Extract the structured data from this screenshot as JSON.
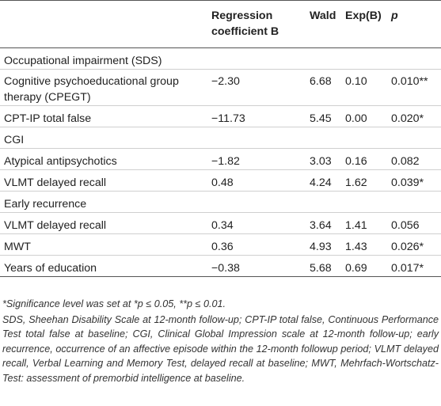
{
  "headers": {
    "col1": "",
    "col2": "Regression coefficient B",
    "col3": "Wald",
    "col4": "Exp(B)",
    "col5": "p"
  },
  "rows": [
    {
      "type": "section",
      "label": "Occupational impairment (SDS)"
    },
    {
      "type": "data",
      "label": "Cognitive psychoeducational group therapy (CPEGT)",
      "b": "−2.30",
      "wald": "6.68",
      "expb": "0.10",
      "p": "0.010**"
    },
    {
      "type": "data",
      "label": "CPT-IP total false",
      "b": "−11.73",
      "wald": "5.45",
      "expb": "0.00",
      "p": "0.020*"
    },
    {
      "type": "section",
      "label": "CGI"
    },
    {
      "type": "data",
      "label": "Atypical antipsychotics",
      "b": "−1.82",
      "wald": "3.03",
      "expb": "0.16",
      "p": "0.082"
    },
    {
      "type": "data",
      "label": "VLMT delayed recall",
      "b": "0.48",
      "wald": "4.24",
      "expb": "1.62",
      "p": "0.039*"
    },
    {
      "type": "section",
      "label": "Early recurrence"
    },
    {
      "type": "data",
      "label": "VLMT delayed recall",
      "b": "0.34",
      "wald": "3.64",
      "expb": "1.41",
      "p": "0.056"
    },
    {
      "type": "data",
      "label": "MWT",
      "b": "0.36",
      "wald": "4.93",
      "expb": "1.43",
      "p": "0.026*"
    },
    {
      "type": "data",
      "label": "Years of education",
      "b": "−0.38",
      "wald": "5.68",
      "expb": "0.69",
      "p": "0.017*"
    }
  ],
  "notes": {
    "significance": "*Significance level was set at *p ≤ 0.05, **p ≤ 0.01.",
    "abbreviations": "SDS, Sheehan Disability Scale at 12-month follow-up; CPT-IP total false, Continuous Performance Test total false at baseline; CGI, Clinical Global Impression scale at 12-month follow-up; early recurrence, occurrence of an affective episode within the 12-month followup period; VLMT delayed recall, Verbal Learning and Memory Test, delayed recall at baseline; MWT, Mehrfach-Wortschatz-Test: assessment of premorbid intelligence at baseline."
  }
}
